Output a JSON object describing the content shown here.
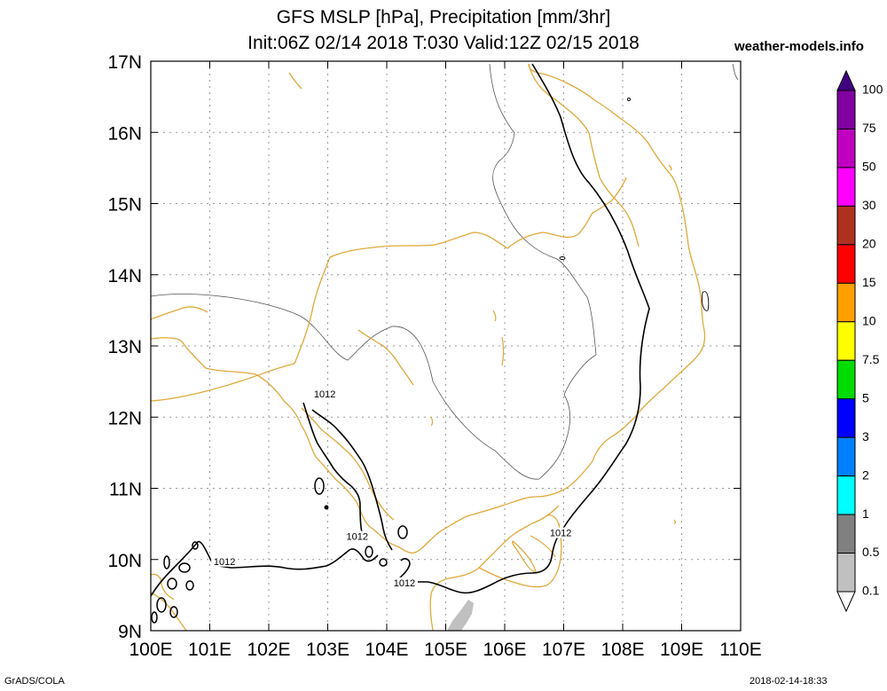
{
  "title": {
    "line1": "GFS MSLP [hPa], Precipitation [mm/3hr]",
    "line2": "Init:06Z 02/14 2018 T:030 Valid:12Z 02/15 2018"
  },
  "site": "weather-models.info",
  "footer": {
    "left": "GrADS/COLA",
    "right": "2018-02-14-18:33"
  },
  "map": {
    "lon_range": [
      100,
      110
    ],
    "lat_range": [
      9,
      17
    ],
    "grid": true,
    "lon_labels": [
      "100E",
      "101E",
      "102E",
      "103E",
      "104E",
      "105E",
      "106E",
      "107E",
      "108E",
      "109E",
      "110E"
    ],
    "lat_labels": [
      "9N",
      "10N",
      "11N",
      "12N",
      "13N",
      "14N",
      "15N",
      "16N",
      "17N"
    ],
    "isobar_labels": [
      {
        "text": "1012",
        "lon": 102.95,
        "lat": 12.3
      },
      {
        "text": "1012",
        "lon": 103.5,
        "lat": 10.3
      },
      {
        "text": "1012",
        "lon": 101.25,
        "lat": 9.95
      },
      {
        "text": "1012",
        "lon": 104.3,
        "lat": 9.65
      },
      {
        "text": "1012",
        "lon": 106.95,
        "lat": 10.35
      }
    ],
    "colors": {
      "coast": "#e0a83a",
      "border": "#555555",
      "isobar": "#000000",
      "precip_light": "#c0c0c0"
    }
  },
  "colorbar": {
    "levels": [
      "0.1",
      "0.5",
      "1",
      "2",
      "3",
      "5",
      "7.5",
      "10",
      "15",
      "20",
      "30",
      "50",
      "75",
      "100"
    ],
    "colors": [
      "#ffffff",
      "#c0c0c0",
      "#808080",
      "#00ffff",
      "#0080ff",
      "#0000ff",
      "#00dc00",
      "#ffff00",
      "#ffa000",
      "#ff0000",
      "#b03020",
      "#ff00ff",
      "#c000c0",
      "#8000a0",
      "#400080"
    ]
  }
}
